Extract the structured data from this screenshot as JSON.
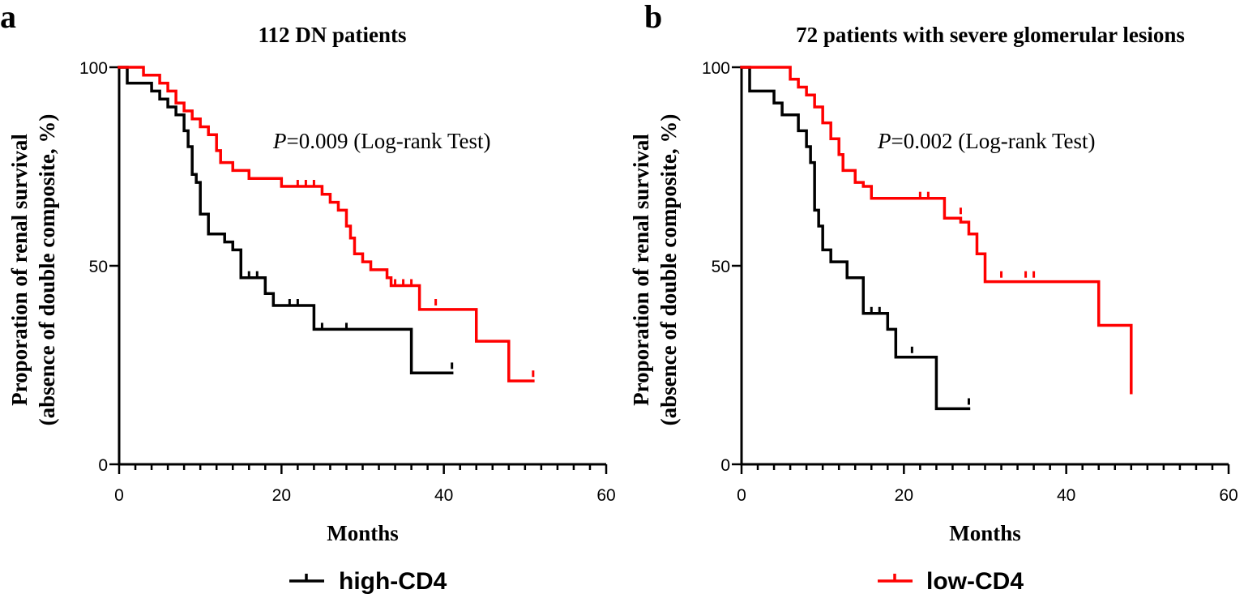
{
  "legend": [
    {
      "label": "high-CD4",
      "color": "#000000"
    },
    {
      "label": "low-CD4",
      "color": "#ff0000"
    }
  ],
  "chart_data": [
    {
      "panel": "a",
      "type": "line",
      "subtype": "kaplan-meier",
      "title": "112 DN patients",
      "xlabel": "Months",
      "ylabel_line1": "Proporation of renal survival",
      "ylabel_line2": "(absence of double composite, %)",
      "xlim": [
        0,
        60
      ],
      "ylim": [
        0,
        100
      ],
      "xticks": [
        0,
        20,
        40,
        60
      ],
      "yticks": [
        0,
        50,
        100
      ],
      "annotation_p": "P",
      "annotation_rest": "=0.009 (Log-rank Test)",
      "series": [
        {
          "name": "high-CD4",
          "color": "#000000",
          "steps": [
            [
              0,
              100
            ],
            [
              1,
              96
            ],
            [
              4,
              94
            ],
            [
              5,
              92
            ],
            [
              6,
              90
            ],
            [
              7,
              88
            ],
            [
              8,
              84
            ],
            [
              8.5,
              80
            ],
            [
              9,
              73
            ],
            [
              9.5,
              71
            ],
            [
              10,
              63
            ],
            [
              11,
              58
            ],
            [
              13,
              56
            ],
            [
              14,
              54
            ],
            [
              15,
              47
            ],
            [
              18,
              43
            ],
            [
              19,
              40
            ],
            [
              24,
              34
            ],
            [
              36,
              23
            ],
            [
              41,
              23
            ]
          ],
          "censored": [
            [
              16,
              47
            ],
            [
              17,
              47
            ],
            [
              21,
              40
            ],
            [
              22,
              40
            ],
            [
              25,
              34
            ],
            [
              28,
              34
            ],
            [
              41,
              24
            ]
          ]
        },
        {
          "name": "low-CD4",
          "color": "#ff0000",
          "steps": [
            [
              0,
              100
            ],
            [
              3,
              98
            ],
            [
              5,
              96
            ],
            [
              6,
              94
            ],
            [
              7,
              91
            ],
            [
              8,
              89
            ],
            [
              9,
              87
            ],
            [
              10,
              85
            ],
            [
              11,
              83
            ],
            [
              12,
              79
            ],
            [
              12.5,
              76
            ],
            [
              14,
              74
            ],
            [
              16,
              72
            ],
            [
              20,
              70
            ],
            [
              25,
              68
            ],
            [
              26,
              66
            ],
            [
              27,
              64
            ],
            [
              28,
              60
            ],
            [
              28.5,
              57
            ],
            [
              29,
              53
            ],
            [
              30,
              51
            ],
            [
              31,
              49
            ],
            [
              33,
              47
            ],
            [
              33.5,
              45
            ],
            [
              37,
              39
            ],
            [
              44,
              31
            ],
            [
              48,
              21
            ],
            [
              51,
              21
            ]
          ],
          "censored": [
            [
              22,
              70
            ],
            [
              23,
              70
            ],
            [
              24,
              70
            ],
            [
              34,
              45
            ],
            [
              35,
              45
            ],
            [
              36,
              45
            ],
            [
              39,
              40
            ],
            [
              51,
              22
            ]
          ]
        }
      ]
    },
    {
      "panel": "b",
      "type": "line",
      "subtype": "kaplan-meier",
      "title": "72 patients with severe glomerular lesions",
      "xlabel": "Months",
      "ylabel_line1": "Proporation of renal survival",
      "ylabel_line2": "(absence of double composite, %)",
      "xlim": [
        0,
        60
      ],
      "ylim": [
        0,
        100
      ],
      "xticks": [
        0,
        20,
        40,
        60
      ],
      "yticks": [
        0,
        50,
        100
      ],
      "annotation_p": "P",
      "annotation_rest": "=0.002 (Log-rank Test)",
      "series": [
        {
          "name": "high-CD4",
          "color": "#000000",
          "steps": [
            [
              0,
              100
            ],
            [
              1,
              94
            ],
            [
              4,
              91
            ],
            [
              5,
              88
            ],
            [
              7,
              84
            ],
            [
              8,
              80
            ],
            [
              8.5,
              76
            ],
            [
              9,
              64
            ],
            [
              9.5,
              60
            ],
            [
              10,
              54
            ],
            [
              11,
              51
            ],
            [
              13,
              47
            ],
            [
              15,
              38
            ],
            [
              18,
              34
            ],
            [
              19,
              27
            ],
            [
              24,
              14
            ],
            [
              28,
              14
            ]
          ],
          "censored": [
            [
              16,
              38
            ],
            [
              17,
              38
            ],
            [
              21,
              28
            ],
            [
              28,
              15
            ]
          ]
        },
        {
          "name": "low-CD4",
          "color": "#ff0000",
          "steps": [
            [
              0,
              100
            ],
            [
              6,
              97
            ],
            [
              7,
              95
            ],
            [
              8,
              93
            ],
            [
              9,
              90
            ],
            [
              10,
              86
            ],
            [
              11,
              82
            ],
            [
              12,
              78
            ],
            [
              12.5,
              74
            ],
            [
              14,
              71
            ],
            [
              15,
              70
            ],
            [
              16,
              67
            ],
            [
              25,
              62
            ],
            [
              27,
              61
            ],
            [
              28,
              58
            ],
            [
              29,
              53
            ],
            [
              30,
              46
            ],
            [
              44,
              35
            ],
            [
              48,
              18
            ]
          ],
          "censored": [
            [
              22,
              67
            ],
            [
              23,
              67
            ],
            [
              27,
              63
            ],
            [
              32,
              47
            ],
            [
              35,
              47
            ],
            [
              36,
              47
            ],
            [
              48,
              19
            ]
          ]
        }
      ]
    }
  ]
}
